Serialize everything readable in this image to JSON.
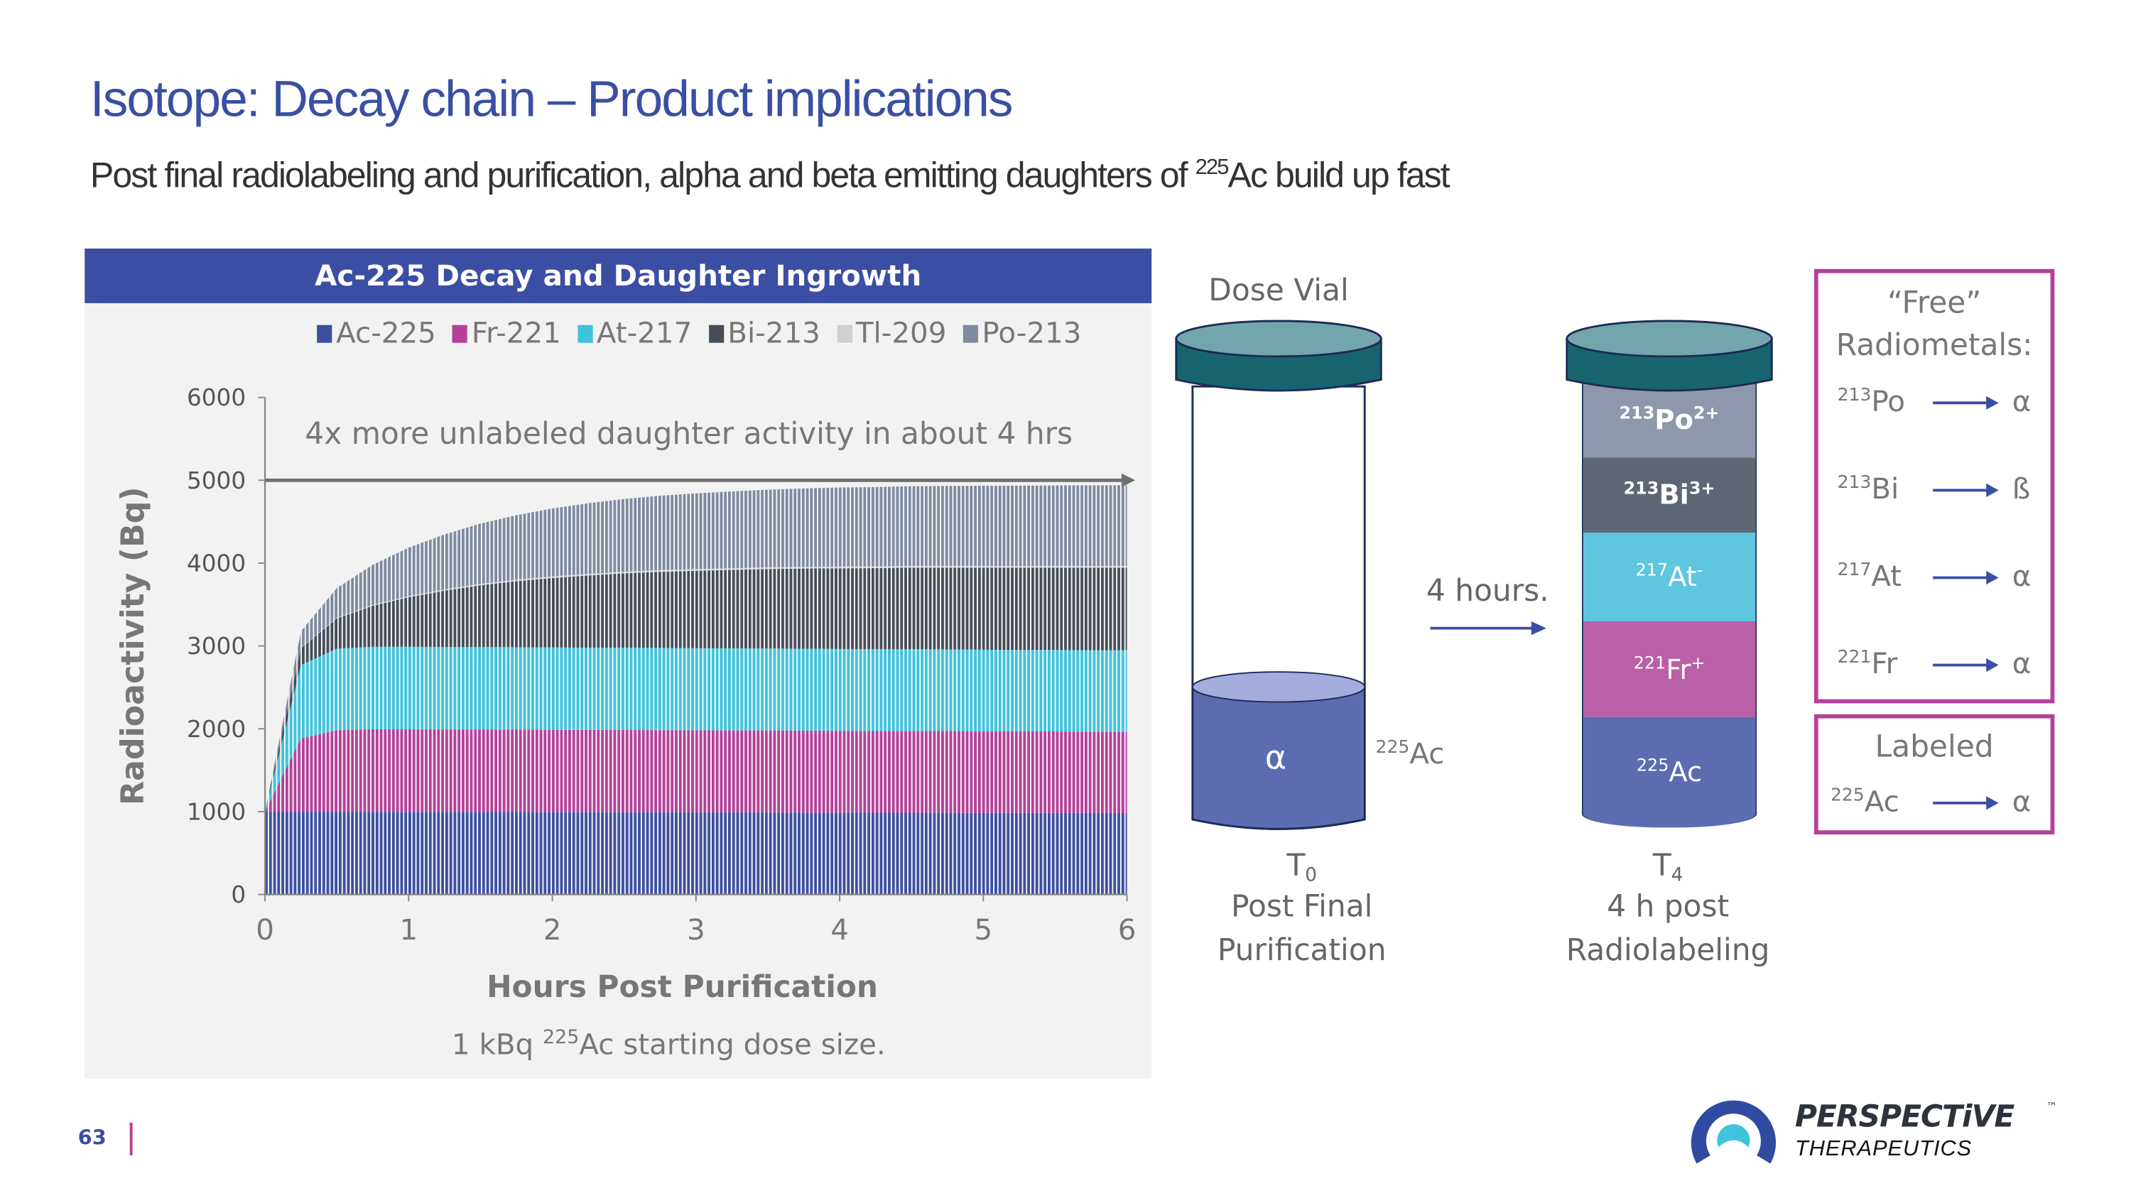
{
  "slide": {
    "title": "Isotope: Decay chain – Product implications",
    "subtitle_pre": "Post final radiolabeling and purification, alpha and beta emitting daughters of ",
    "subtitle_sup": "225",
    "subtitle_post": "Ac build up fast",
    "page_number": "63"
  },
  "chart_data": {
    "type": "bar",
    "stacked": true,
    "title": "Ac-225 Decay and Daughter Ingrowth",
    "xlabel": "Hours Post Purification",
    "ylabel": "Radioactivity (Bq)",
    "xlim": [
      0,
      6
    ],
    "ylim": [
      0,
      6000
    ],
    "xticks": [
      "0",
      "1",
      "2",
      "3",
      "4",
      "5",
      "6"
    ],
    "yticks": [
      "0",
      "1000",
      "2000",
      "3000",
      "4000",
      "5000",
      "6000"
    ],
    "legend_position": "top",
    "annotation": "4x more unlabeled daughter activity in about 4 hrs",
    "annotation_arrow_y": 5000,
    "note_pre": "1 kBq ",
    "note_sup": "225",
    "note_post": "Ac starting dose size.",
    "x": [
      0,
      0.25,
      0.5,
      0.75,
      1,
      1.25,
      1.5,
      1.75,
      2,
      2.25,
      2.5,
      2.75,
      3,
      3.25,
      3.5,
      3.75,
      4,
      4.25,
      4.5,
      4.75,
      5,
      5.25,
      5.5,
      5.75,
      6
    ],
    "series": [
      {
        "name": "Ac-225",
        "color": "#3c4fa0",
        "values": [
          1000,
          999,
          999,
          998,
          997,
          996,
          996,
          995,
          994,
          993,
          993,
          992,
          991,
          990,
          990,
          989,
          988,
          987,
          987,
          986,
          985,
          984,
          984,
          983,
          983
        ]
      },
      {
        "name": "Fr-221",
        "color": "#b5409a",
        "values": [
          0,
          885,
          984,
          996,
          997,
          996,
          996,
          995,
          994,
          993,
          993,
          992,
          991,
          990,
          990,
          989,
          988,
          987,
          987,
          986,
          985,
          984,
          984,
          983,
          983
        ]
      },
      {
        "name": "At-217",
        "color": "#3ec4dc",
        "values": [
          0,
          885,
          984,
          996,
          997,
          996,
          996,
          995,
          994,
          993,
          993,
          992,
          991,
          990,
          990,
          989,
          988,
          987,
          987,
          986,
          985,
          984,
          984,
          983,
          983
        ]
      },
      {
        "name": "Bi-213",
        "color": "#474d57",
        "values": [
          0,
          204,
          366,
          495,
          598,
          680,
          745,
          797,
          839,
          872,
          898,
          919,
          935,
          948,
          959,
          967,
          974,
          979,
          984,
          987,
          990,
          992,
          993,
          995,
          996
        ]
      },
      {
        "name": "Tl-209",
        "color": "#cfcfd4",
        "values": [
          0,
          4,
          8,
          11,
          13,
          14,
          16,
          17,
          18,
          19,
          19,
          20,
          20,
          20,
          20,
          21,
          21,
          21,
          21,
          21,
          21,
          21,
          21,
          21,
          21
        ]
      },
      {
        "name": "Po-213",
        "color": "#7f8a9e",
        "values": [
          0,
          200,
          358,
          484,
          585,
          665,
          729,
          779,
          821,
          853,
          878,
          899,
          914,
          927,
          938,
          946,
          953,
          957,
          962,
          965,
          968,
          970,
          971,
          973,
          974
        ]
      }
    ]
  },
  "dose_vial": {
    "heading": "Dose Vial",
    "alpha": "α",
    "side_sup": "225",
    "side_label": "Ac",
    "t_label": "T",
    "t_sub": "0",
    "caption_1": "Post Final",
    "caption_2": "Purification"
  },
  "transition": {
    "label": "4 hours."
  },
  "post_vial": {
    "layers": [
      {
        "sup": "213",
        "sym": "Po",
        "charge": "2+",
        "color": "#8e97ab"
      },
      {
        "sup": "213",
        "sym": "Bi",
        "charge": "3+",
        "color": "#5f6673"
      },
      {
        "sup": "217",
        "sym": "At",
        "charge": "-",
        "color": "#5ec6de"
      },
      {
        "sup": "221",
        "sym": "Fr",
        "charge": "+",
        "color": "#bb60a8"
      },
      {
        "sup": "225",
        "sym": "Ac",
        "charge": "",
        "color": "#5b6cb0"
      }
    ],
    "t_label": "T",
    "t_sub": "4",
    "caption_1": "4 h post",
    "caption_2": "Radiolabeling"
  },
  "free_box": {
    "heading_1": "“Free”",
    "heading_2": "Radiometals:",
    "rows": [
      {
        "sup": "213",
        "sym": "Po",
        "emission": "α"
      },
      {
        "sup": "213",
        "sym": "Bi",
        "emission": "ß"
      },
      {
        "sup": "217",
        "sym": "At",
        "emission": "α"
      },
      {
        "sup": "221",
        "sym": "Fr",
        "emission": "α"
      }
    ]
  },
  "labeled_box": {
    "heading": "Labeled",
    "row": {
      "sup": "225",
      "sym": "Ac",
      "emission": "α"
    }
  },
  "logo": {
    "name": "PERSPECTiVE",
    "tm": "™",
    "sub": "THERAPEUTICS"
  },
  "colors": {
    "brand_blue": "#3a4fa3",
    "magenta": "#b5409a",
    "panel_bg": "#f2f2f2"
  }
}
